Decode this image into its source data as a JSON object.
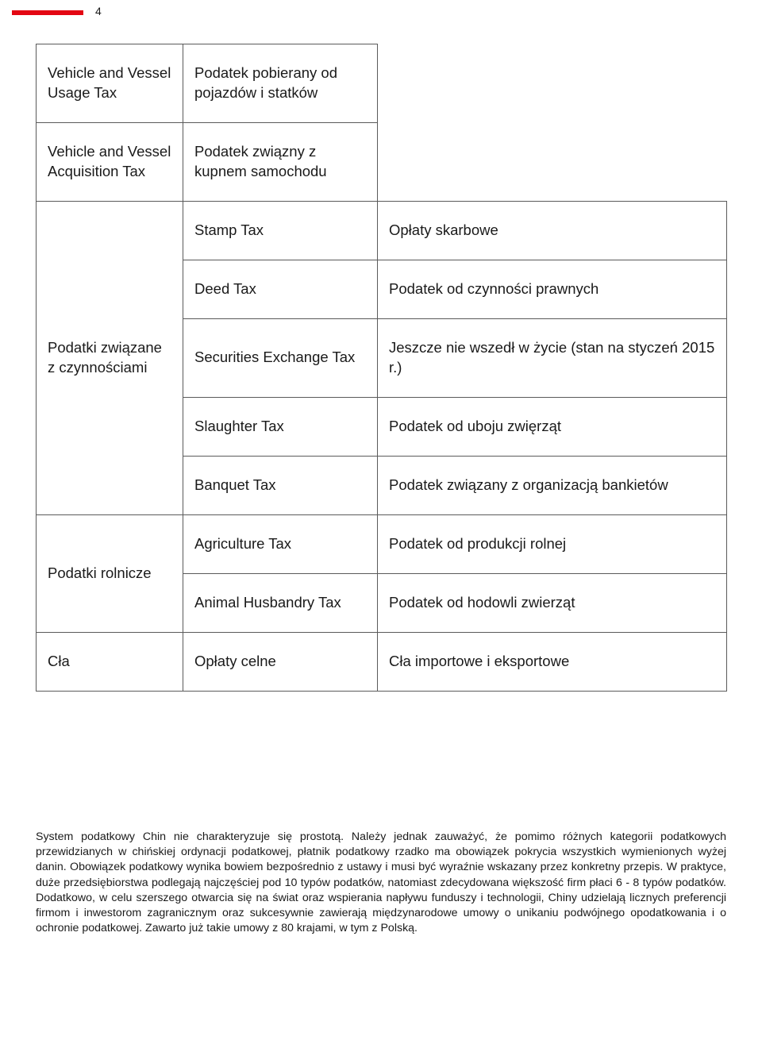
{
  "page_number": "4",
  "accent_color": "#e30613",
  "table": {
    "rows": [
      {
        "rowspan_col1": 0,
        "col1": "",
        "col2": "Vehicle and Vessel Usage Tax",
        "col3": "Podatek pobierany od pojazdów i statków"
      },
      {
        "rowspan_col1": 0,
        "col1": "",
        "col2": "Vehicle and Vessel Acquisition Tax",
        "col3": "Podatek związny z kupnem samochodu"
      },
      {
        "rowspan_col1": 5,
        "col1": "Podatki związane z czynnościami",
        "col2": "Stamp Tax",
        "col3": "Opłaty skarbowe"
      },
      {
        "rowspan_col1": 0,
        "col1": "",
        "col2": "Deed Tax",
        "col3": "Podatek od czynności prawnych"
      },
      {
        "rowspan_col1": 0,
        "col1": "",
        "col2": "Securities Exchange Tax",
        "col3": "Jeszcze nie wszedł w życie (stan na styczeń 2015 r.)"
      },
      {
        "rowspan_col1": 0,
        "col1": "",
        "col2": "Slaughter Tax",
        "col3": "Podatek od uboju zwięrząt"
      },
      {
        "rowspan_col1": 0,
        "col1": "",
        "col2": "Banquet Tax",
        "col3": "Podatek związany z organizacją bankietów"
      },
      {
        "rowspan_col1": 2,
        "col1": "Podatki rolnicze",
        "col2": "Agriculture Tax",
        "col3": "Podatek od produkcji rolnej"
      },
      {
        "rowspan_col1": 0,
        "col1": "",
        "col2": "Animal Husbandry Tax",
        "col3": "Podatek od hodowli zwierząt"
      },
      {
        "rowspan_col1": 1,
        "col1": "Cła",
        "col2": "Opłaty celne",
        "col3": "Cła importowe i eksportowe"
      }
    ]
  },
  "paragraph": "System podatkowy Chin nie charakteryzuje się prostotą. Należy jednak zauważyć, że pomimo różnych kategorii podatkowych przewidzianych w chińskiej ordynacji podatkowej, płatnik podatkowy rzadko ma obowiązek pokrycia wszystkich wymienionych wyżej danin. Obowiązek podatkowy wynika bowiem bezpośrednio z ustawy i musi być wyraźnie wskazany przez konkretny przepis. W praktyce, duże przedsiębiorstwa podlegają najczęściej pod 10 typów podatków, natomiast zdecydowana większość firm płaci 6 - 8 typów podatków. Dodatkowo, w celu szerszego otwarcia się na świat oraz wspierania napływu funduszy i technologii, Chiny udzielają licznych preferencji firmom i inwestorom zagranicznym oraz sukcesywnie zawierają międzynarodowe umowy o unikaniu podwójnego opodatkowania i o ochronie podatkowej. Zawarto już takie umowy z 80 krajami, w tym z Polską."
}
